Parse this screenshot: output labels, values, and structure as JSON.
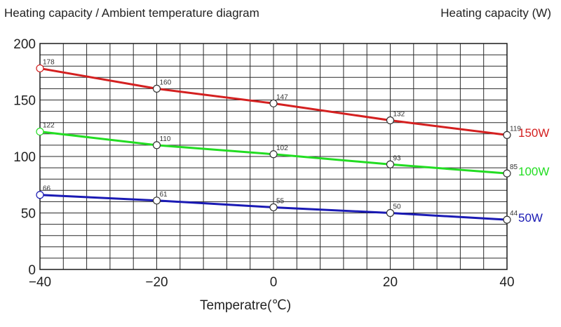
{
  "header": {
    "title": "Heating capacity / Ambient temperature diagram",
    "y_unit": "Heating capacity (W)"
  },
  "chart_data": {
    "type": "line",
    "title": "Heating capacity / Ambient temperature diagram",
    "xlabel": "Temperatre(℃)",
    "ylabel": "Heating capacity (W)",
    "x": [
      -40,
      -20,
      0,
      20,
      40
    ],
    "x_tick_labels": [
      "−40",
      "−20",
      "0",
      "20",
      "40"
    ],
    "y_tick_labels": [
      "0",
      "50",
      "100",
      "150",
      "200"
    ],
    "y_ticks": [
      0,
      50,
      100,
      150,
      200
    ],
    "xlim": [
      -40,
      40
    ],
    "ylim": [
      0,
      200
    ],
    "grid": true,
    "legend": "right",
    "series": [
      {
        "name": "150W",
        "color": "#d42020",
        "values": [
          178,
          160,
          147,
          132,
          119
        ]
      },
      {
        "name": "100W",
        "color": "#22dd22",
        "values": [
          122,
          110,
          102,
          93,
          85
        ]
      },
      {
        "name": "50W",
        "color": "#1a1ab4",
        "values": [
          66,
          61,
          55,
          50,
          44
        ]
      }
    ]
  }
}
